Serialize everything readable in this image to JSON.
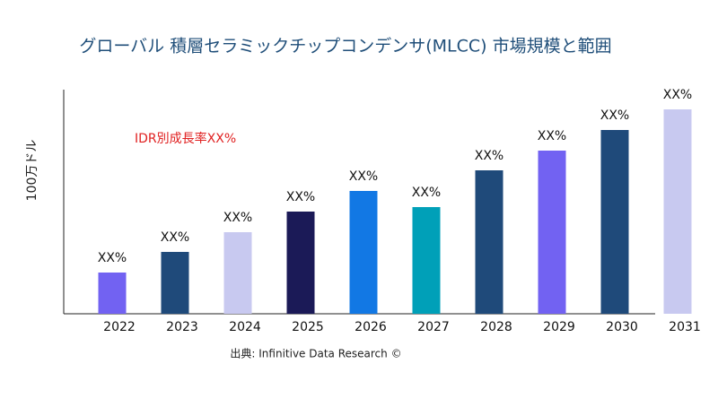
{
  "chart_data": {
    "type": "bar",
    "title": "グローバル 積層セラミックチップコンデンサ(MLCC) 市場規模と範囲",
    "y_label": "100万ドル",
    "annotation": "IDR別成長率XX%",
    "source": "出典: Infinitive Data Research ©",
    "categories": [
      "2022",
      "2023",
      "2024",
      "2025",
      "2026",
      "2027",
      "2028",
      "2029",
      "2030",
      "2031"
    ],
    "values": [
      46,
      69,
      91,
      114,
      137,
      119,
      160,
      182,
      205,
      228
    ],
    "value_labels": [
      "XX%",
      "XX%",
      "XX%",
      "XX%",
      "XX%",
      "XX%",
      "XX%",
      "XX%",
      "XX%",
      "XX%"
    ],
    "colors": [
      "#7262f2",
      "#1f4a7a",
      "#c8c9f0",
      "#1b1a57",
      "#1278e4",
      "#00a0b8",
      "#1f4a7a",
      "#7262f2",
      "#1f4a7a",
      "#c8c9f0"
    ],
    "ylim": [
      0,
      250
    ]
  }
}
